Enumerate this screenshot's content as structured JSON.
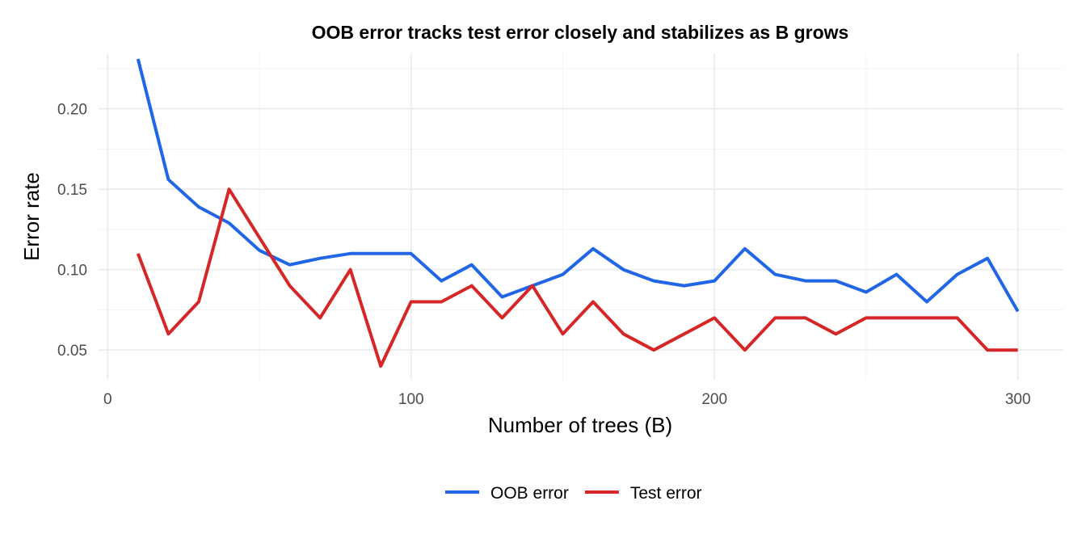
{
  "chart_data": {
    "type": "line",
    "title": "OOB error tracks test error closely and stabilizes as B grows",
    "xlabel": "Number of trees (B)",
    "ylabel": "Error rate",
    "xlim": [
      -3,
      315
    ],
    "ylim": [
      0.0315,
      0.2345
    ],
    "x_ticks": [
      0,
      100,
      200,
      300
    ],
    "x_tick_labels": [
      "0",
      "100",
      "200",
      "300"
    ],
    "x_minor_ticks": [
      50,
      150,
      250
    ],
    "y_ticks": [
      0.05,
      0.1,
      0.15,
      0.2
    ],
    "y_tick_labels": [
      "0.05",
      "0.10",
      "0.15",
      "0.20"
    ],
    "y_minor_ticks": [
      0.075,
      0.125,
      0.175,
      0.225
    ],
    "grid": true,
    "legend_position": "bottom",
    "x": [
      10,
      20,
      30,
      40,
      50,
      60,
      70,
      80,
      90,
      100,
      110,
      120,
      130,
      140,
      150,
      160,
      170,
      180,
      190,
      200,
      210,
      220,
      230,
      240,
      250,
      260,
      270,
      280,
      290,
      300
    ],
    "series": [
      {
        "name": "OOB error",
        "color": "#2166e6",
        "values": [
          0.231,
          0.156,
          0.139,
          0.129,
          0.112,
          0.103,
          0.107,
          0.11,
          0.11,
          0.11,
          0.093,
          0.103,
          0.083,
          0.09,
          0.097,
          0.113,
          0.1,
          0.093,
          0.09,
          0.093,
          0.113,
          0.097,
          0.093,
          0.093,
          0.086,
          0.097,
          0.08,
          0.097,
          0.107,
          0.074
        ]
      },
      {
        "name": "Test error",
        "color": "#d62728",
        "values": [
          0.11,
          0.06,
          0.08,
          0.15,
          0.12,
          0.09,
          0.07,
          0.1,
          0.04,
          0.08,
          0.08,
          0.09,
          0.07,
          0.09,
          0.06,
          0.08,
          0.06,
          0.05,
          0.06,
          0.07,
          0.05,
          0.07,
          0.07,
          0.06,
          0.07,
          0.07,
          0.07,
          0.07,
          0.05,
          0.05
        ]
      }
    ]
  }
}
